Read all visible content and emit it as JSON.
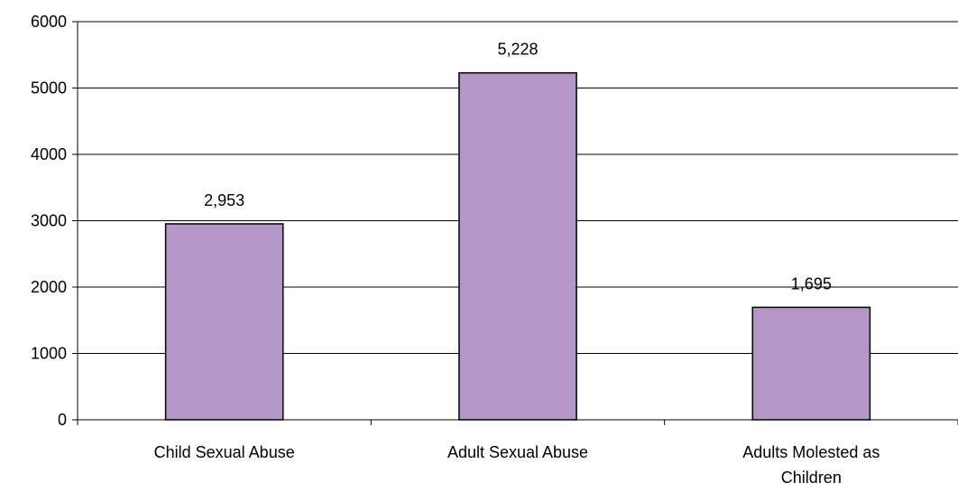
{
  "chart_data": {
    "type": "bar",
    "categories": [
      [
        "Child Sexual Abuse"
      ],
      [
        "Adult Sexual Abuse"
      ],
      [
        "Adults Molested as",
        "Children"
      ]
    ],
    "values": [
      2953,
      5228,
      1695
    ],
    "data_labels": [
      "2,953",
      "5,228",
      "1,695"
    ],
    "yticks": [
      "0",
      "1000",
      "2000",
      "3000",
      "4000",
      "5000",
      "6000"
    ],
    "ylim": [
      0,
      6000
    ],
    "grid": true,
    "legend": "none",
    "title": "",
    "xlabel": "",
    "ylabel": ""
  },
  "colors": {
    "bar_fill": "#b497c7",
    "bar_stroke": "#000000",
    "grid": "#000000",
    "background": "#ffffff"
  }
}
